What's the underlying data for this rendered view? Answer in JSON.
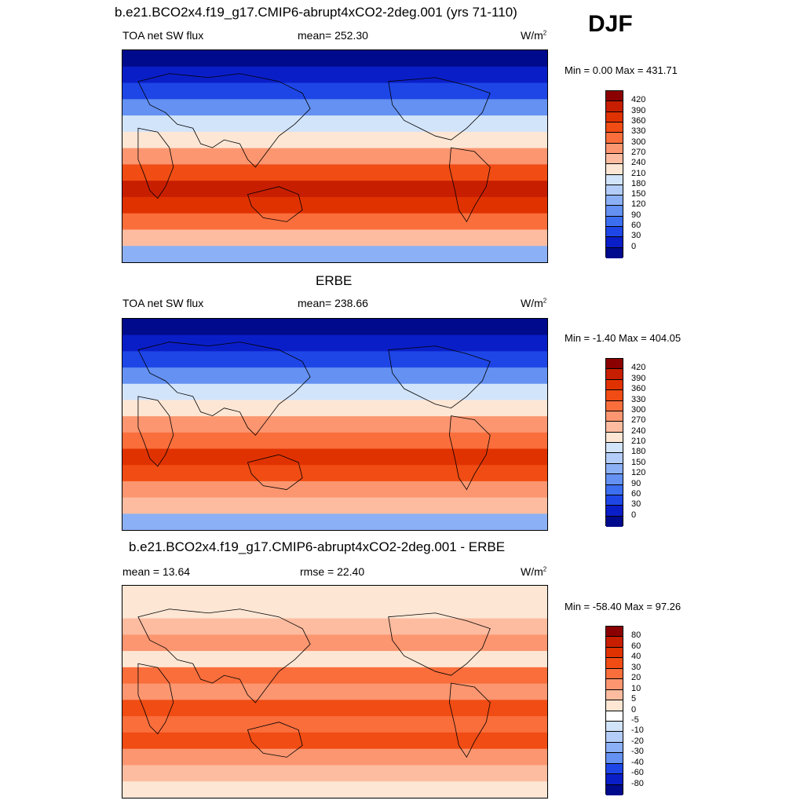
{
  "season": "DJF",
  "panels": [
    {
      "title": "b.e21.BCO2x4.f19_g17.CMIP6-abrupt4xCO2-2deg.001 (yrs 71-110)",
      "left_label": "TOA net SW flux",
      "center_label": "mean= 252.30",
      "units": "W/m",
      "units_sup": "2",
      "minmax": "Min =   0.00 Max = 431.71",
      "colorbar_labels": [
        "420",
        "390",
        "360",
        "330",
        "300",
        "270",
        "240",
        "210",
        "180",
        "150",
        "120",
        "90",
        "60",
        "30",
        "0"
      ],
      "colorbar_colors": [
        "#8b0000",
        "#c81e00",
        "#e03200",
        "#f04c14",
        "#fa6e3c",
        "#fc9670",
        "#fdbca0",
        "#fde6d4",
        "#d2e4fa",
        "#b4cdf8",
        "#8cb0f5",
        "#6491f2",
        "#3c6ef0",
        "#1e46e6",
        "#0a1ec8",
        "#000a8c"
      ],
      "field_colors": [
        "#000a8c",
        "#0a1ec8",
        "#1e46e6",
        "#6491f2",
        "#d2e4fa",
        "#fde6d4",
        "#fc9670",
        "#f04c14",
        "#c81e00",
        "#e03200",
        "#fa6e3c",
        "#fdbca0",
        "#8cb0f5"
      ]
    },
    {
      "title": "ERBE",
      "left_label": "TOA net SW flux",
      "center_label": "mean= 238.66",
      "units": "W/m",
      "units_sup": "2",
      "minmax": "Min =  -1.40 Max = 404.05",
      "colorbar_labels": [
        "420",
        "390",
        "360",
        "330",
        "300",
        "270",
        "240",
        "210",
        "180",
        "150",
        "120",
        "90",
        "60",
        "30",
        "0"
      ],
      "colorbar_colors": [
        "#8b0000",
        "#c81e00",
        "#e03200",
        "#f04c14",
        "#fa6e3c",
        "#fc9670",
        "#fdbca0",
        "#fde6d4",
        "#d2e4fa",
        "#b4cdf8",
        "#8cb0f5",
        "#6491f2",
        "#3c6ef0",
        "#1e46e6",
        "#0a1ec8",
        "#000a8c"
      ],
      "field_colors": [
        "#000a8c",
        "#0a1ec8",
        "#1e46e6",
        "#6491f2",
        "#d2e4fa",
        "#fde6d4",
        "#fc9670",
        "#fa6e3c",
        "#e03200",
        "#f04c14",
        "#fc9670",
        "#fdbca0",
        "#8cb0f5"
      ]
    },
    {
      "title": "b.e21.BCO2x4.f19_g17.CMIP6-abrupt4xCO2-2deg.001 - ERBE",
      "left_label": "mean =  13.64",
      "center_label": "rmse =  22.40",
      "units": "W/m",
      "units_sup": "2",
      "minmax": "Min = -58.40 Max =  97.26",
      "colorbar_labels": [
        "80",
        "60",
        "40",
        "30",
        "20",
        "10",
        "5",
        "0",
        "-5",
        "-10",
        "-20",
        "-30",
        "-40",
        "-60",
        "-80"
      ],
      "colorbar_colors": [
        "#8b0000",
        "#c81e00",
        "#e03200",
        "#f04c14",
        "#fa6e3c",
        "#fc9670",
        "#fdbca0",
        "#fde6d4",
        "#ffffff",
        "#d2e4fa",
        "#b4cdf8",
        "#8cb0f5",
        "#6491f2",
        "#1e46e6",
        "#0a1ec8",
        "#000a8c"
      ],
      "field_colors": [
        "#fde6d4",
        "#fde6d4",
        "#fdbca0",
        "#fc9670",
        "#fde6d4",
        "#fa6e3c",
        "#fc9670",
        "#f04c14",
        "#fa6e3c",
        "#f04c14",
        "#fc9670",
        "#fdbca0",
        "#fde6d4"
      ]
    }
  ]
}
